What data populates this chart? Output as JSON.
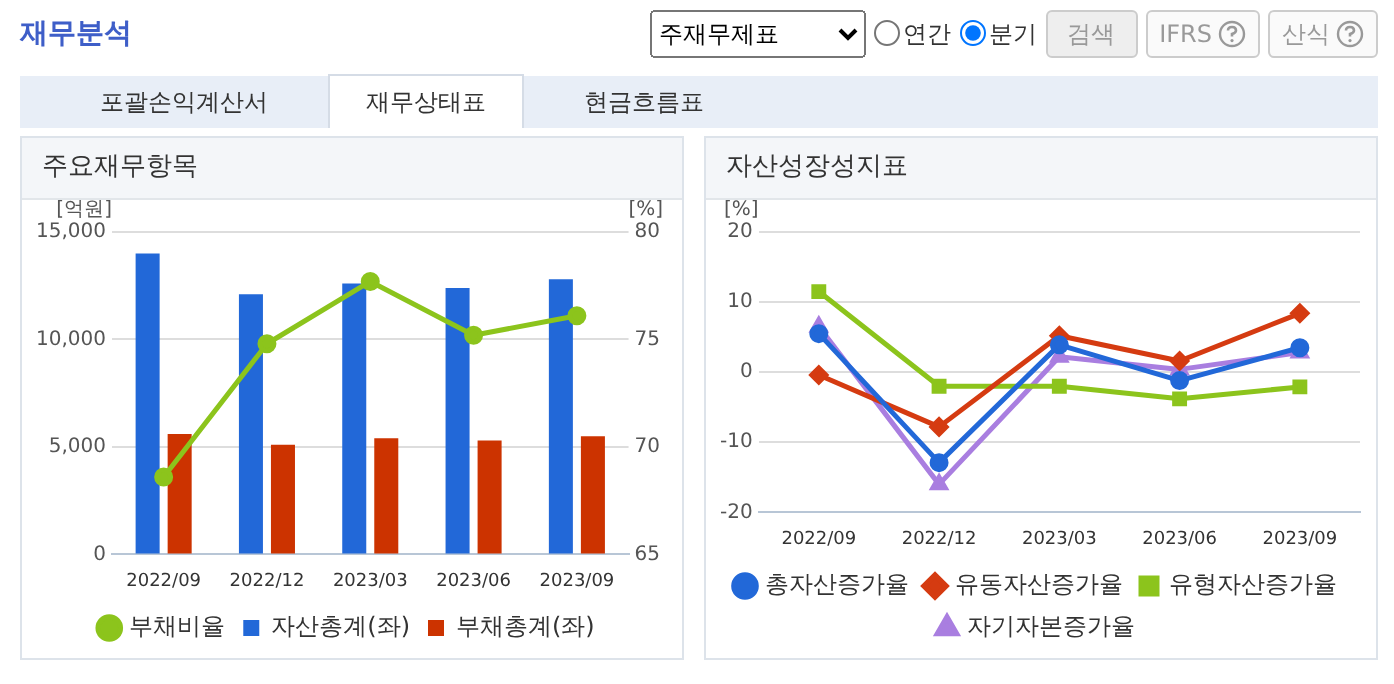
{
  "chart_data": [
    {
      "type": "other",
      "title": "재무분석",
      "annotations": [
        "주재무제표",
        "연간",
        "분기",
        "검색",
        "IFRS",
        "산식",
        "포괄손익계산서",
        "재무상태표",
        "현금흐름표"
      ]
    },
    {
      "type": "bar",
      "title": "주요재무항목",
      "ylabel": "[억원]",
      "y2label": "[%]",
      "categories": [
        "2022/09",
        "2022/12",
        "2023/03",
        "2023/06",
        "2023/09"
      ],
      "series": [
        {
          "name": "자산총계(좌)",
          "color": "#2268d8",
          "values": [
            14000,
            12100,
            12600,
            12400,
            12800
          ]
        },
        {
          "name": "부채총계(좌)",
          "color": "#cc3300",
          "values": [
            5600,
            5100,
            5400,
            5300,
            5500
          ]
        },
        {
          "name": "부채비율",
          "type": "line",
          "axis": "y2",
          "marker": "circle",
          "color": "#8cc41c",
          "values": [
            68.6,
            74.8,
            77.7,
            75.2,
            76.1
          ]
        }
      ],
      "ylim": [
        0,
        15000
      ],
      "yticks": [
        {
          "value": 0,
          "label": "0"
        },
        {
          "value": 5000,
          "label": "5,000"
        },
        {
          "value": 10000,
          "label": "10,000"
        },
        {
          "value": 15000,
          "label": "15,000"
        }
      ],
      "y2lim": [
        65,
        80
      ],
      "y2ticks": [
        65,
        70,
        75,
        80
      ],
      "grid": "y",
      "legend": "bottom"
    },
    {
      "type": "line",
      "title": "자산성장성지표",
      "ylabel": "[%]",
      "categories": [
        "2022/09",
        "2022/12",
        "2023/03",
        "2023/06",
        "2023/09"
      ],
      "series": [
        {
          "name": "총자산증가율",
          "marker": "circle",
          "color": "#2268d8",
          "values": [
            5.5,
            -12.9,
            3.9,
            -1.2,
            3.5
          ]
        },
        {
          "name": "유동자산증가율",
          "marker": "diamond",
          "color": "#d53b11",
          "values": [
            -0.4,
            -7.8,
            5.2,
            1.6,
            8.4
          ]
        },
        {
          "name": "유형자산증가율",
          "marker": "square",
          "color": "#8cc41c",
          "values": [
            11.5,
            -2.0,
            -2.0,
            -3.8,
            -2.1
          ]
        },
        {
          "name": "자기자본증가율",
          "marker": "triangle",
          "color": "#a97ee0",
          "values": [
            6.5,
            -16.0,
            2.2,
            0.4,
            2.8
          ]
        }
      ],
      "ylim": [
        -20,
        20
      ],
      "yticks": [
        -20,
        -10,
        0,
        10,
        20
      ],
      "grid": "y",
      "legend": "bottom"
    }
  ]
}
